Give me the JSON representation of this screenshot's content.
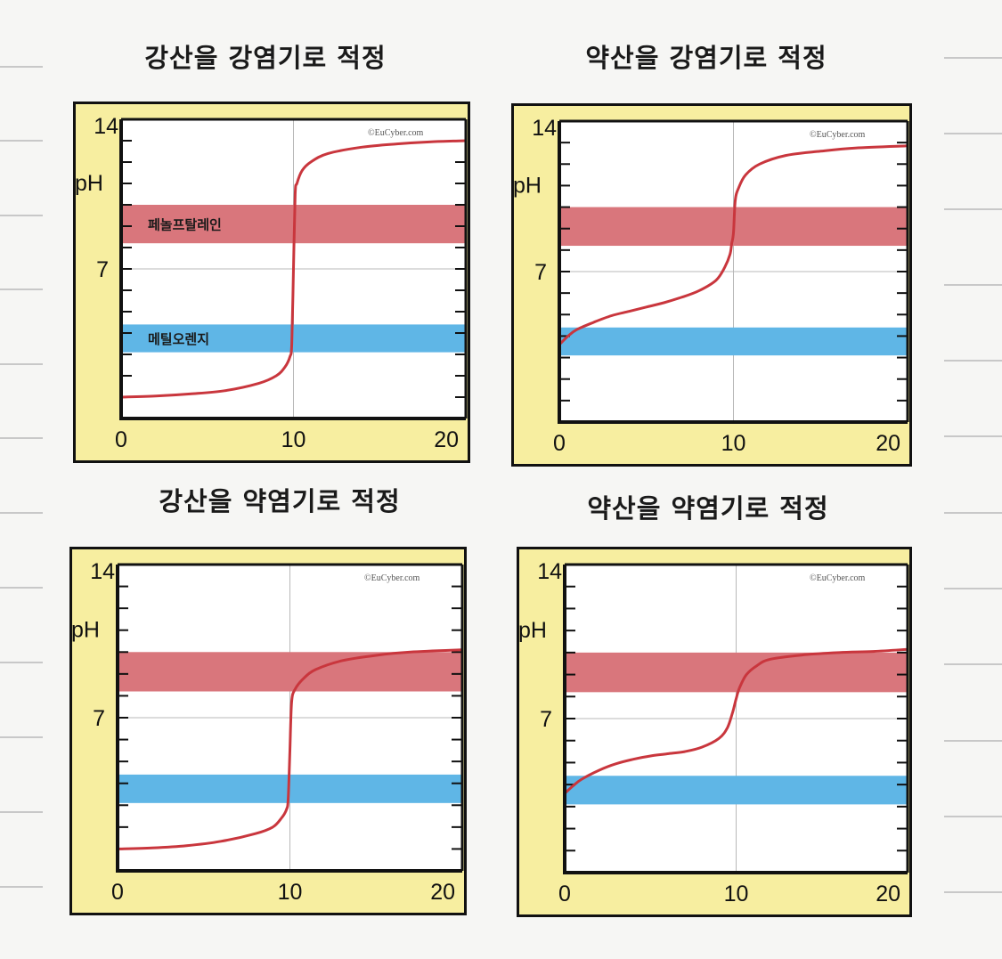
{
  "colors": {
    "yellow_axis": "#f7eea0",
    "phenolphthalein_band": "#d9767c",
    "methyl_orange_band": "#5fb6e6",
    "curve": "#c9363d",
    "frame": "#111111"
  },
  "chart_data": [
    {
      "type": "line",
      "title": "강산을 강염기로 적정",
      "ylabel": "pH",
      "xlim": [
        0,
        20
      ],
      "ylim": [
        0,
        14
      ],
      "x_ticks": [
        "0",
        "10",
        "20"
      ],
      "y_ticks": [
        "7",
        "14"
      ],
      "watermark": "©EuCyber.com",
      "bands": [
        {
          "indicator": "phenolphthalein",
          "label": "페놀프탈레인",
          "range": [
            8.2,
            10.0
          ]
        },
        {
          "indicator": "methyl_orange",
          "label": "메틸오렌지",
          "range": [
            3.1,
            4.4
          ]
        }
      ],
      "curve": {
        "x": [
          0,
          2,
          4,
          6,
          8,
          9,
          9.5,
          9.8,
          9.9,
          10,
          10.1,
          10.2,
          10.5,
          11,
          12,
          14,
          16,
          18,
          20
        ],
        "y": [
          1.0,
          1.05,
          1.15,
          1.3,
          1.65,
          2.0,
          2.4,
          2.9,
          3.5,
          7.0,
          10.5,
          11.0,
          11.6,
          12.0,
          12.4,
          12.7,
          12.85,
          12.95,
          13.0
        ]
      }
    },
    {
      "type": "line",
      "title": "약산을 강염기로 적정",
      "ylabel": "pH",
      "xlim": [
        0,
        20
      ],
      "ylim": [
        0,
        14
      ],
      "x_ticks": [
        "0",
        "10",
        "20"
      ],
      "y_ticks": [
        "7",
        "14"
      ],
      "watermark": "©EuCyber.com",
      "bands": [
        {
          "indicator": "phenolphthalein",
          "label": "",
          "range": [
            8.2,
            10.0
          ]
        },
        {
          "indicator": "methyl_orange",
          "label": "",
          "range": [
            3.1,
            4.4
          ]
        }
      ],
      "curve": {
        "x": [
          0,
          0.5,
          1,
          2,
          3,
          4,
          5,
          6,
          7,
          8,
          9,
          9.5,
          9.8,
          9.9,
          10,
          10.1,
          10.3,
          10.7,
          11.5,
          13,
          15,
          17,
          20
        ],
        "y": [
          3.6,
          4.0,
          4.3,
          4.65,
          4.95,
          5.15,
          5.35,
          5.55,
          5.8,
          6.1,
          6.6,
          7.2,
          7.8,
          8.3,
          8.8,
          10.3,
          10.9,
          11.5,
          12.0,
          12.4,
          12.6,
          12.75,
          12.85
        ]
      }
    },
    {
      "type": "line",
      "title": "강산을 약염기로 적정",
      "ylabel": "pH",
      "xlim": [
        0,
        20
      ],
      "ylim": [
        0,
        14
      ],
      "x_ticks": [
        "0",
        "10",
        "20"
      ],
      "y_ticks": [
        "7",
        "14"
      ],
      "watermark": "©EuCyber.com",
      "bands": [
        {
          "indicator": "phenolphthalein",
          "label": "",
          "range": [
            8.2,
            10.0
          ]
        },
        {
          "indicator": "methyl_orange",
          "label": "",
          "range": [
            3.1,
            4.4
          ]
        }
      ],
      "curve": {
        "x": [
          0,
          2,
          4,
          6,
          8,
          9,
          9.5,
          9.8,
          9.9,
          10,
          10.1,
          10.3,
          10.8,
          11.5,
          13,
          15,
          17,
          20
        ],
        "y": [
          1.0,
          1.05,
          1.15,
          1.35,
          1.7,
          2.0,
          2.4,
          2.8,
          3.3,
          5.5,
          7.7,
          8.3,
          8.8,
          9.2,
          9.6,
          9.85,
          10.0,
          10.1
        ]
      }
    },
    {
      "type": "line",
      "title": "약산을 약염기로 적정",
      "ylabel": "pH",
      "xlim": [
        0,
        20
      ],
      "ylim": [
        0,
        14
      ],
      "x_ticks": [
        "0",
        "10",
        "20"
      ],
      "y_ticks": [
        "7",
        "14"
      ],
      "watermark": "©EuCyber.com",
      "bands": [
        {
          "indicator": "phenolphthalein",
          "label": "",
          "range": [
            8.2,
            10.0
          ]
        },
        {
          "indicator": "methyl_orange",
          "label": "",
          "range": [
            3.1,
            4.4
          ]
        }
      ],
      "curve": {
        "x": [
          0,
          0.5,
          1,
          2,
          3,
          4,
          5,
          6,
          7,
          8,
          9,
          9.5,
          9.8,
          10,
          10.2,
          10.6,
          11.2,
          12,
          14,
          16,
          18,
          20
        ],
        "y": [
          3.6,
          3.95,
          4.25,
          4.65,
          4.95,
          5.15,
          5.3,
          5.4,
          5.5,
          5.7,
          6.1,
          6.6,
          7.3,
          7.9,
          8.4,
          9.0,
          9.4,
          9.7,
          9.9,
          10.0,
          10.05,
          10.15
        ]
      }
    }
  ]
}
